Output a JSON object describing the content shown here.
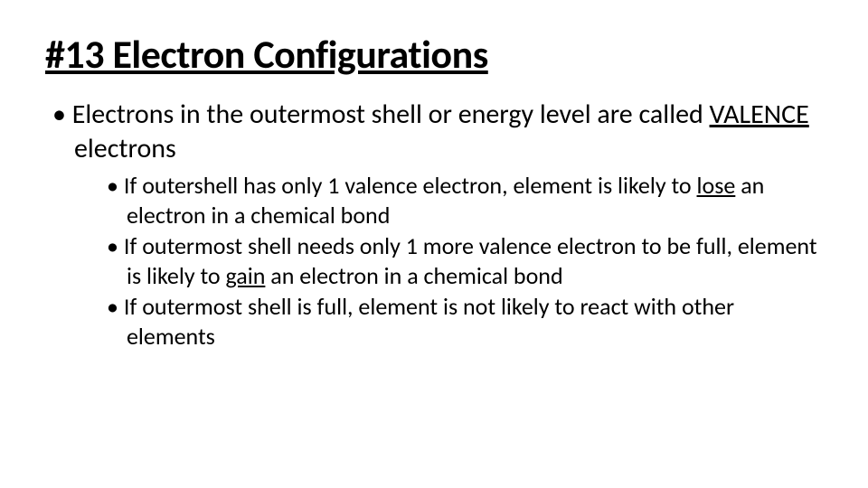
{
  "slide": {
    "title": "#13 Electron Configurations",
    "title_fontsize": 44,
    "title_weight": 700,
    "title_underline": true,
    "background_color": "#ffffff",
    "text_color": "#000000",
    "font_family": "Calibri",
    "bullets": {
      "level1": {
        "fontsize": 30,
        "items": [
          {
            "pre": "Electrons in the outermost shell or energy level are called ",
            "underlined": "VALENCE",
            "post": " electrons"
          }
        ]
      },
      "level2": {
        "fontsize": 26,
        "items": [
          {
            "pre": "If outershell has only 1 valence electron, element is likely to ",
            "underlined": "lose",
            "post": " an electron in a chemical bond"
          },
          {
            "pre": "If outermost shell needs only 1 more valence electron to be full, element is likely to ",
            "underlined": "gain",
            "post": " an electron in a chemical bond"
          },
          {
            "pre": "If outermost shell is full, element is not likely to react with other elements",
            "underlined": "",
            "post": ""
          }
        ]
      }
    }
  }
}
